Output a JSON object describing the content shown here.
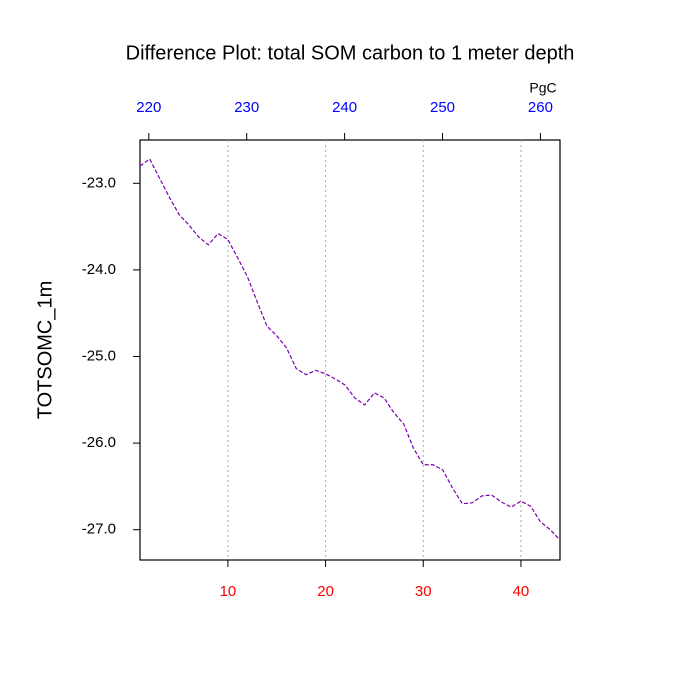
{
  "chart_data": {
    "type": "line",
    "title": "Difference Plot: total SOM carbon to 1 meter depth",
    "ylabel": "TOTSOMC_1m",
    "x2label": "PgC",
    "x": [
      1,
      2,
      3,
      4,
      5,
      6,
      7,
      8,
      9,
      10,
      11,
      12,
      13,
      14,
      15,
      16,
      17,
      18,
      19,
      20,
      21,
      22,
      23,
      24,
      25,
      26,
      27,
      28,
      29,
      30,
      31,
      32,
      33,
      34,
      35,
      36,
      37,
      38,
      39,
      40,
      41,
      42,
      43,
      44
    ],
    "series": [
      {
        "color": "#7a00b0",
        "values": [
          -22.8,
          -22.72,
          -22.94,
          -23.16,
          -23.36,
          -23.48,
          -23.62,
          -23.71,
          -23.58,
          -23.65,
          -23.86,
          -24.08,
          -24.37,
          -24.65,
          -24.76,
          -24.9,
          -25.14,
          -25.21,
          -25.16,
          -25.2,
          -25.26,
          -25.33,
          -25.48,
          -25.56,
          -25.42,
          -25.48,
          -25.65,
          -25.78,
          -26.06,
          -26.25,
          -26.25,
          -26.31,
          -26.52,
          -26.7,
          -26.69,
          -26.61,
          -26.6,
          -26.68,
          -26.74,
          -26.67,
          -26.73,
          -26.91,
          -27.0,
          -27.12
        ]
      }
    ],
    "xlim": [
      1,
      44
    ],
    "xticks": [
      10,
      20,
      30,
      40
    ],
    "xtick_color": "#ff0000",
    "x2lim": [
      219.1,
      262.0
    ],
    "x2ticks": [
      220,
      230,
      240,
      250,
      260
    ],
    "x2tick_color": "#0000ff",
    "ylim": [
      -27.35,
      -22.5
    ],
    "yticks": [
      {
        "value": -23,
        "label": "-23.0"
      },
      {
        "value": -24,
        "label": "-24.0"
      },
      {
        "value": -25,
        "label": "-25.0"
      },
      {
        "value": -26,
        "label": "-26.0"
      },
      {
        "value": -27,
        "label": "-27.0"
      }
    ],
    "grid": "x"
  }
}
